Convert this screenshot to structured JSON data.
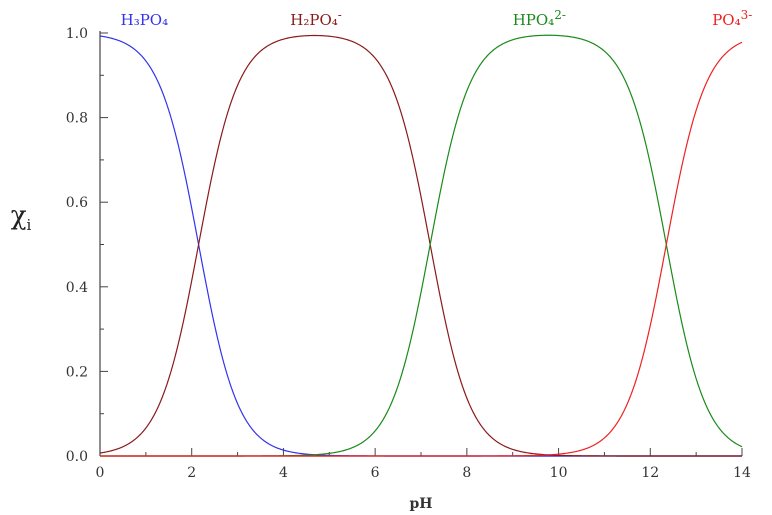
{
  "chart_data": {
    "type": "line",
    "xlabel": "pH",
    "ylabel": {
      "symbol": "χ",
      "subscript": "i"
    },
    "xlim": [
      0,
      14
    ],
    "ylim": [
      0,
      1
    ],
    "x_ticks": [
      "0",
      "2",
      "4",
      "6",
      "8",
      "10",
      "12",
      "14"
    ],
    "x_tick_values": [
      0,
      2,
      4,
      6,
      8,
      10,
      12,
      14
    ],
    "y_ticks": [
      "0.0",
      "0.2",
      "0.4",
      "0.6",
      "0.8",
      "1.0"
    ],
    "y_tick_values": [
      0,
      0.2,
      0.4,
      0.6,
      0.8,
      1.0
    ],
    "grid": false,
    "pKa": [
      2.15,
      7.2,
      12.35
    ],
    "series": [
      {
        "name": "H₃PO₄",
        "name_base": "H₃PO₄",
        "name_sup": "",
        "color": "#3333ee",
        "label_x": 0.45,
        "label_y": 1.0
      },
      {
        "name": "H₂PO₄⁻",
        "name_base": "H₂PO₄",
        "name_sup": "-",
        "color": "#8b1a1a",
        "label_x": 4.15,
        "label_y": 1.0
      },
      {
        "name": "HPO₄²⁻",
        "name_base": "HPO₄",
        "name_sup": "2-",
        "color": "#1a8a1a",
        "label_x": 9.0,
        "label_y": 1.0
      },
      {
        "name": "PO₄³⁻",
        "name_base": "PO₄",
        "name_sup": "3-",
        "color": "#ee2222",
        "label_x": 13.35,
        "label_y": 1.0
      }
    ]
  }
}
